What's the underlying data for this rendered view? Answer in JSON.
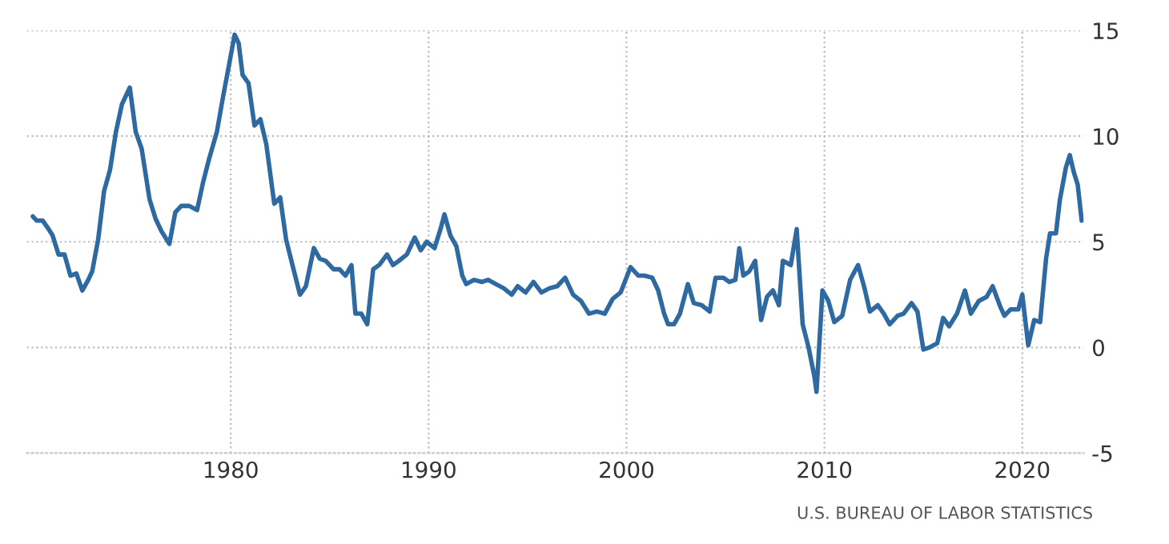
{
  "chart_data": {
    "type": "line",
    "x": [
      1970.0,
      1970.2,
      1970.5,
      1970.8,
      1971.0,
      1971.3,
      1971.6,
      1971.9,
      1972.2,
      1972.5,
      1972.8,
      1973.0,
      1973.3,
      1973.6,
      1973.9,
      1974.2,
      1974.5,
      1974.9,
      1975.2,
      1975.5,
      1975.9,
      1976.2,
      1976.5,
      1976.9,
      1977.2,
      1977.5,
      1977.9,
      1978.3,
      1978.6,
      1978.9,
      1979.3,
      1979.6,
      1979.9,
      1980.2,
      1980.4,
      1980.6,
      1980.9,
      1981.2,
      1981.5,
      1981.8,
      1982.2,
      1982.5,
      1982.8,
      1983.2,
      1983.5,
      1983.8,
      1984.2,
      1984.5,
      1984.8,
      1985.2,
      1985.5,
      1985.8,
      1986.1,
      1986.3,
      1986.6,
      1986.9,
      1987.2,
      1987.5,
      1987.9,
      1988.2,
      1988.5,
      1988.9,
      1989.3,
      1989.6,
      1989.9,
      1990.3,
      1990.6,
      1990.8,
      1991.1,
      1991.4,
      1991.7,
      1991.9,
      1992.3,
      1992.7,
      1993.0,
      1993.4,
      1993.8,
      1994.2,
      1994.5,
      1994.9,
      1995.3,
      1995.7,
      1996.1,
      1996.5,
      1996.9,
      1997.3,
      1997.7,
      1998.1,
      1998.5,
      1998.9,
      1999.3,
      1999.7,
      2000.2,
      2000.6,
      2000.9,
      2001.3,
      2001.6,
      2001.9,
      2002.1,
      2002.4,
      2002.7,
      2003.1,
      2003.4,
      2003.8,
      2004.2,
      2004.5,
      2004.9,
      2005.2,
      2005.5,
      2005.7,
      2005.9,
      2006.2,
      2006.5,
      2006.8,
      2007.1,
      2007.4,
      2007.7,
      2007.9,
      2008.3,
      2008.6,
      2008.9,
      2009.2,
      2009.5,
      2009.6,
      2009.9,
      2010.2,
      2010.5,
      2010.9,
      2011.3,
      2011.7,
      2012.0,
      2012.3,
      2012.7,
      2013.0,
      2013.3,
      2013.7,
      2014.0,
      2014.4,
      2014.7,
      2015.0,
      2015.3,
      2015.7,
      2016.0,
      2016.3,
      2016.7,
      2017.1,
      2017.4,
      2017.8,
      2018.2,
      2018.5,
      2018.9,
      2019.1,
      2019.4,
      2019.8,
      2020.0,
      2020.3,
      2020.6,
      2020.9,
      2021.2,
      2021.4,
      2021.7,
      2021.9,
      2022.2,
      2022.4,
      2022.6,
      2022.8,
      2023.0
    ],
    "series": [
      {
        "color": "#2e6aa1",
        "values": [
          6.2,
          6.0,
          6.0,
          5.6,
          5.3,
          4.4,
          4.4,
          3.4,
          3.5,
          2.7,
          3.2,
          3.6,
          5.1,
          7.4,
          8.4,
          10.2,
          11.5,
          12.3,
          10.2,
          9.4,
          7.0,
          6.1,
          5.5,
          4.9,
          6.4,
          6.7,
          6.7,
          6.5,
          7.8,
          8.9,
          10.2,
          11.8,
          13.3,
          14.8,
          14.4,
          12.9,
          12.5,
          10.5,
          10.8,
          9.6,
          6.8,
          7.1,
          5.1,
          3.6,
          2.5,
          2.9,
          4.7,
          4.2,
          4.1,
          3.7,
          3.7,
          3.4,
          3.9,
          1.6,
          1.6,
          1.1,
          3.7,
          3.9,
          4.4,
          3.9,
          4.1,
          4.4,
          5.2,
          4.6,
          5.0,
          4.7,
          5.6,
          6.3,
          5.3,
          4.8,
          3.4,
          3.0,
          3.2,
          3.1,
          3.2,
          3.0,
          2.8,
          2.5,
          2.9,
          2.6,
          3.1,
          2.6,
          2.8,
          2.9,
          3.3,
          2.5,
          2.2,
          1.6,
          1.7,
          1.6,
          2.3,
          2.6,
          3.8,
          3.4,
          3.4,
          3.3,
          2.7,
          1.6,
          1.1,
          1.1,
          1.6,
          3.0,
          2.1,
          2.0,
          1.7,
          3.3,
          3.3,
          3.1,
          3.2,
          4.7,
          3.4,
          3.6,
          4.1,
          1.3,
          2.4,
          2.7,
          2.0,
          4.1,
          3.9,
          5.6,
          1.1,
          0.0,
          -1.4,
          -2.1,
          2.7,
          2.2,
          1.2,
          1.5,
          3.2,
          3.9,
          2.9,
          1.7,
          2.0,
          1.6,
          1.1,
          1.5,
          1.6,
          2.1,
          1.7,
          -0.1,
          0.0,
          0.2,
          1.4,
          1.0,
          1.6,
          2.7,
          1.6,
          2.2,
          2.4,
          2.9,
          1.9,
          1.5,
          1.8,
          1.8,
          2.5,
          0.1,
          1.3,
          1.2,
          4.2,
          5.4,
          5.4,
          7.0,
          8.5,
          9.1,
          8.3,
          7.7,
          6.0
        ]
      }
    ],
    "xlim": [
      1969.7,
      2023.1
    ],
    "xticks": [
      1980,
      1990,
      2000,
      2010,
      2020
    ],
    "ylim": [
      -5,
      15
    ],
    "yticks": [
      -5,
      0,
      5,
      10,
      15
    ],
    "grid": true,
    "legend": false,
    "line_style": "solid",
    "marker": "none",
    "annotations": [
      "U.S. BUREAU OF LABOR STATISTICS"
    ]
  }
}
